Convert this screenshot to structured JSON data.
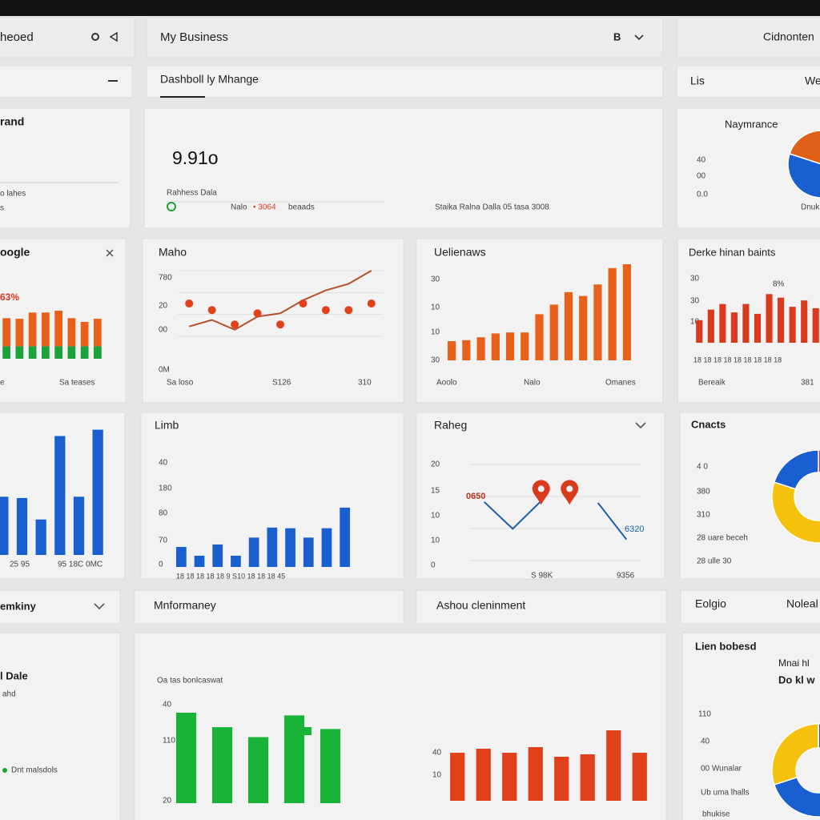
{
  "header": {
    "left_title": "heoed",
    "business": "My Business",
    "menu": "B",
    "right_title": "Cidnonten"
  },
  "tabs": {
    "active": "Dashboll ly Mhange",
    "right_title": "Lis",
    "right_action": "We"
  },
  "brand_card": {
    "title": "rand",
    "line1": "o lahes",
    "line2": "s"
  },
  "summary": {
    "value": "9.91o",
    "label": "Rahhess Dala",
    "note": "Nalo",
    "highlight": "• 3064",
    "suffix": "beaads",
    "footer": "Staika Ralna Dalla 05 tasa 3008"
  },
  "performance": {
    "title": "Naymrance",
    "labels": [
      "40",
      "00",
      "0.0"
    ],
    "footer": "Dnukinh"
  },
  "google": {
    "title": "oogle",
    "value_label": "63%",
    "left_label": "e",
    "footer": "Sa teases"
  },
  "maho": {
    "title": "Maho",
    "y_labels": [
      "780",
      "20",
      "00",
      "0M"
    ],
    "x_labels": [
      "Sa loso",
      "S126",
      "310"
    ]
  },
  "uelienaws": {
    "title": "Uelienaws",
    "y_labels": [
      "30",
      "10",
      "10",
      "30"
    ],
    "x_labels": [
      "Aoolo",
      "Nalo",
      "Omanes"
    ]
  },
  "derke": {
    "title": "Derke hinan baints",
    "y_labels": [
      "30",
      "30",
      "10"
    ],
    "peak_label": "8%",
    "x_labels_row": "18 18 18 18 18 18 18 18 18",
    "footer_left": "Bereaik",
    "footer_right": "381"
  },
  "blue_card": {
    "x_labels": [
      "25 95",
      "95 18C 0MC"
    ]
  },
  "limb": {
    "title": "Limb",
    "y_labels": [
      "40",
      "180",
      "80",
      "70",
      "0"
    ],
    "x_labels_row": "18 18 18 18 18 9 S10 18 18 18 45"
  },
  "raheg": {
    "title": "Raheg",
    "y_labels": [
      "20",
      "15",
      "10",
      "10",
      "0"
    ],
    "start_label": "0650",
    "end_label": "6320",
    "x_labels": [
      "S 98K",
      "9356"
    ]
  },
  "contacts": {
    "title": "Cnacts",
    "lines": [
      "4 0",
      "380",
      "310",
      "28 uare beceh",
      "28 ulle 30"
    ]
  },
  "sections": {
    "left": "emkiny",
    "middle": "Mnformaney",
    "right": "Ashou cleninment",
    "side": "Eolgio",
    "side_action": "Noleal"
  },
  "detail_card": {
    "title": "l Dale",
    "subtitle": "ahd",
    "footer": "Dnt malsdols"
  },
  "information": {
    "title": "Oa tas bonlcaswat",
    "left_y_labels": [
      "40",
      "110",
      "20"
    ],
    "right_y_labels": [
      "40",
      "10"
    ]
  },
  "lien": {
    "title": "Lien bobesd",
    "heading": [
      "Mnai hl",
      "Do kl w"
    ],
    "lines": [
      "110",
      "40",
      "00 Wunalar",
      "Ub uma lhalls",
      "bhukise"
    ]
  },
  "charts": [
    {
      "type": "stacked-bar",
      "ylim": [
        0,
        100
      ],
      "series": [
        {
          "color": "#1aa33a",
          "values": [
            20,
            20,
            20,
            20,
            20,
            20,
            20,
            20
          ]
        },
        {
          "color": "#e8611a",
          "values": [
            45,
            44,
            54,
            54,
            57,
            45,
            39,
            44
          ]
        }
      ]
    },
    {
      "type": "line",
      "ylim": [
        0,
        100
      ],
      "series": [
        {
          "kind": "line",
          "color": "#b5502a",
          "values": [
            15,
            25,
            10,
            30,
            35,
            55,
            70,
            80,
            100
          ]
        },
        {
          "kind": "dots",
          "color": "#e0401a",
          "values": [
            50,
            40,
            18,
            35,
            18,
            50,
            40,
            40,
            50
          ]
        }
      ]
    },
    {
      "type": "bar",
      "ylim": [
        0,
        100
      ],
      "series": [
        {
          "color": "#e8611a",
          "values": [
            20,
            21,
            24,
            28,
            29,
            29,
            48,
            58,
            71,
            67,
            79,
            96,
            100
          ]
        }
      ]
    },
    {
      "type": "bar",
      "ylim": [
        0,
        100
      ],
      "series": [
        {
          "color": "#d93a1e",
          "values": [
            32,
            47,
            55,
            43,
            55,
            41,
            69,
            64,
            51,
            60,
            49
          ]
        }
      ]
    },
    {
      "type": "bar",
      "ylim": [
        0,
        100
      ],
      "series": [
        {
          "color": "#1a5fd0",
          "values": [
            46,
            45,
            28,
            94,
            46,
            99
          ]
        }
      ]
    },
    {
      "type": "bar",
      "ylim": [
        0,
        100
      ],
      "series": [
        {
          "color": "#1a5fd0",
          "values": [
            32,
            18,
            36,
            18,
            47,
            63,
            62,
            47,
            62,
            95
          ]
        }
      ]
    },
    {
      "type": "line",
      "ylim": [
        0,
        100
      ],
      "series": [
        {
          "kind": "line",
          "color": "#1a5fb0",
          "values": [
            61,
            33,
            62,
            null,
            60,
            22
          ]
        },
        {
          "kind": "pins",
          "color": "#d93a1e",
          "values": [
            null,
            null,
            68,
            68,
            null,
            null
          ]
        }
      ]
    },
    {
      "type": "bar",
      "ylim": [
        0,
        100
      ],
      "series": [
        {
          "color": "#1ab33a",
          "values": [
            100,
            84,
            73,
            97,
            82
          ]
        }
      ]
    },
    {
      "type": "bar",
      "ylim": [
        0,
        100
      ],
      "series": [
        {
          "color": "#e0401a",
          "values": [
            60,
            65,
            60,
            67,
            55,
            58,
            88,
            60
          ]
        }
      ]
    },
    {
      "type": "pie",
      "series": [
        {
          "colors": [
            "#f4c20d",
            "#1a5fd0",
            "#e0601a"
          ],
          "values": [
            20,
            60,
            20
          ]
        }
      ]
    },
    {
      "type": "donut",
      "series": [
        {
          "colors": [
            "#e0301a",
            "#f4c20d",
            "#1a5fd0"
          ],
          "values": [
            45,
            35,
            20
          ]
        }
      ]
    },
    {
      "type": "donut",
      "series": [
        {
          "colors": [
            "#1a5fd0",
            "#f4c20d"
          ],
          "values": [
            70,
            30
          ]
        }
      ]
    }
  ]
}
